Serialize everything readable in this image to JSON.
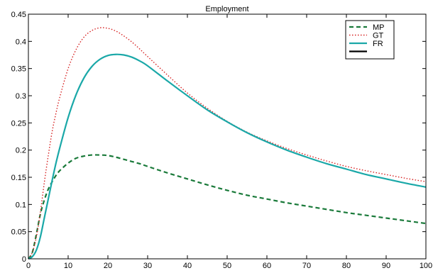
{
  "chart_data": {
    "type": "line",
    "title": "Employment",
    "xlabel": "",
    "ylabel": "",
    "xlim": [
      0,
      100
    ],
    "ylim": [
      0,
      0.45
    ],
    "xticks": [
      0,
      10,
      20,
      30,
      40,
      50,
      60,
      70,
      80,
      90,
      100
    ],
    "yticks": [
      0,
      0.05,
      0.1,
      0.15,
      0.2,
      0.25,
      0.3,
      0.35,
      0.4,
      0.45
    ],
    "xtick_labels": [
      "0",
      "10",
      "20",
      "30",
      "40",
      "50",
      "60",
      "70",
      "80",
      "90",
      "100"
    ],
    "ytick_labels": [
      "0",
      "0.05",
      "0.1",
      "0.15",
      "0.2",
      "0.25",
      "0.3",
      "0.35",
      "0.4",
      "0.45"
    ],
    "grid": false,
    "legend_position": "top-right",
    "x": [
      0,
      1,
      2,
      3,
      4,
      5,
      6,
      7,
      8,
      10,
      12,
      14,
      16,
      18,
      20,
      22,
      24,
      26,
      28,
      30,
      35,
      40,
      45,
      50,
      55,
      60,
      65,
      70,
      75,
      80,
      85,
      90,
      95,
      100
    ],
    "series": [
      {
        "name": "MP",
        "color": "#1a7a3a",
        "dash": "dashed",
        "values": [
          0,
          0.012,
          0.045,
          0.082,
          0.108,
          0.128,
          0.142,
          0.154,
          0.163,
          0.176,
          0.185,
          0.189,
          0.191,
          0.191,
          0.19,
          0.187,
          0.183,
          0.179,
          0.175,
          0.17,
          0.158,
          0.147,
          0.136,
          0.126,
          0.117,
          0.11,
          0.103,
          0.097,
          0.091,
          0.085,
          0.08,
          0.075,
          0.07,
          0.065
        ]
      },
      {
        "name": "GT",
        "color": "#d62020",
        "dash": "dotted",
        "values": [
          0,
          0.012,
          0.04,
          0.085,
          0.14,
          0.19,
          0.235,
          0.27,
          0.3,
          0.35,
          0.385,
          0.408,
          0.42,
          0.425,
          0.424,
          0.419,
          0.41,
          0.399,
          0.386,
          0.372,
          0.338,
          0.305,
          0.277,
          0.253,
          0.233,
          0.217,
          0.203,
          0.191,
          0.18,
          0.17,
          0.162,
          0.155,
          0.148,
          0.142
        ]
      },
      {
        "name": "FR",
        "color": "#1aa8a8",
        "dash": "solid",
        "values": [
          0,
          0.004,
          0.016,
          0.04,
          0.075,
          0.11,
          0.145,
          0.178,
          0.207,
          0.26,
          0.302,
          0.333,
          0.354,
          0.367,
          0.374,
          0.376,
          0.375,
          0.371,
          0.364,
          0.355,
          0.327,
          0.3,
          0.274,
          0.252,
          0.232,
          0.215,
          0.2,
          0.187,
          0.175,
          0.165,
          0.155,
          0.147,
          0.139,
          0.132
        ]
      }
    ],
    "legend_extra": [
      {
        "name": "",
        "color": "#000000",
        "dash": "solid"
      }
    ]
  }
}
